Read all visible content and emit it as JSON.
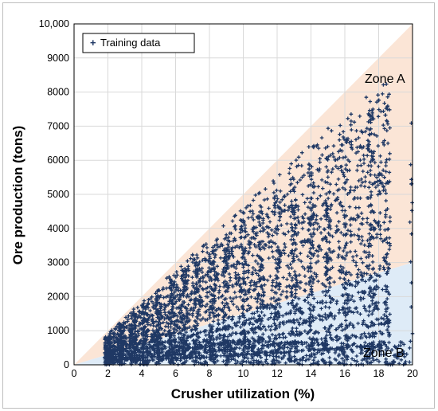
{
  "chart_data": {
    "type": "scatter",
    "title": "",
    "xlabel": "Crusher utilization (%)",
    "ylabel": "Ore production (tons)",
    "xlim": [
      0,
      20
    ],
    "ylim": [
      0,
      10000
    ],
    "x_ticks": [
      "0",
      "2",
      "4",
      "6",
      "8",
      "10",
      "12",
      "14",
      "16",
      "18",
      "20"
    ],
    "y_ticks": [
      "0",
      "1000",
      "2000",
      "3000",
      "4000",
      "5000",
      "6000",
      "7000",
      "8000",
      "9000",
      "10,000"
    ],
    "grid": true,
    "legend": {
      "position": "top-left",
      "entries": [
        "Training data"
      ]
    },
    "series": [
      {
        "name": "Training data",
        "marker": "plus",
        "color": "#1f3864",
        "description_bands": {
          "x_clusters": [
            2,
            2.8,
            3.5,
            4.2,
            5,
            5.8,
            6.5,
            7.3,
            8.2,
            9,
            10,
            11,
            12,
            13,
            14,
            15,
            16,
            17.5,
            18.5,
            20
          ],
          "rays_slope_tons_per_pct": [
            430,
            380,
            330,
            290,
            250,
            215,
            180,
            150,
            120,
            95,
            70,
            50,
            30
          ]
        }
      }
    ],
    "regions": [
      {
        "label": "Zone A",
        "color": "#fbe5d6",
        "bounds": "upper triangle from (0,0) to (20,10000)"
      },
      {
        "label": "Zone B",
        "color": "#deebf7",
        "bounds": "lower region from (0,0) to (20,3000)"
      }
    ]
  }
}
